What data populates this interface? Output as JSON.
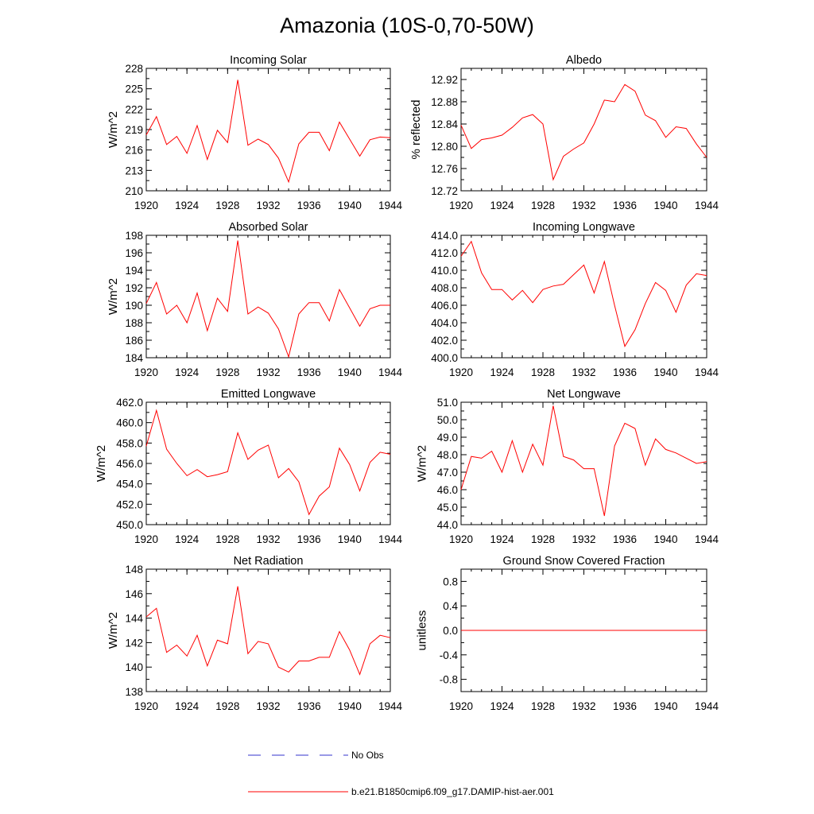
{
  "title": "Amazonia (10S-0,70-50W)",
  "colors": {
    "model": "#ff0000",
    "obs": "#3333cc"
  },
  "legend": {
    "obs_label": "No Obs",
    "model_label": "b.e21.B1850cmip6.f09_g17.DAMIP-hist-aer.001"
  },
  "chart_data": [
    {
      "type": "line",
      "title": "Incoming Solar",
      "ylabel": "W/m^2",
      "ylabel_side": "left",
      "xlim": [
        1920,
        1944
      ],
      "ylim": [
        210,
        228
      ],
      "xticks": [
        "1920",
        "1924",
        "1928",
        "1932",
        "1936",
        "1940",
        "1944"
      ],
      "yticks": [
        "210",
        "213",
        "216",
        "219",
        "222",
        "225",
        "228"
      ],
      "x": [
        1920,
        1921,
        1922,
        1923,
        1924,
        1925,
        1926,
        1927,
        1928,
        1929,
        1930,
        1931,
        1932,
        1933,
        1934,
        1935,
        1936,
        1937,
        1938,
        1939,
        1940,
        1941,
        1942,
        1943,
        1944
      ],
      "series": [
        {
          "values": [
            218.2,
            220.9,
            216.8,
            218.0,
            215.5,
            219.6,
            214.6,
            218.9,
            217.1,
            226.3,
            216.7,
            217.6,
            216.8,
            214.8,
            211.3,
            216.9,
            218.6,
            218.6,
            215.9,
            220.1,
            217.6,
            215.1,
            217.5,
            217.9,
            217.8
          ]
        }
      ]
    },
    {
      "type": "line",
      "title": "Albedo",
      "ylabel": "% reflected",
      "ylabel_side": "left",
      "xlim": [
        1920,
        1944
      ],
      "ylim": [
        12.72,
        12.94
      ],
      "xticks": [
        "1920",
        "1924",
        "1928",
        "1932",
        "1936",
        "1940",
        "1944"
      ],
      "yticks": [
        "12.72",
        "12.76",
        "12.80",
        "12.84",
        "12.88",
        "12.92"
      ],
      "x": [
        1920,
        1921,
        1922,
        1923,
        1924,
        1925,
        1926,
        1927,
        1928,
        1929,
        1930,
        1931,
        1932,
        1933,
        1934,
        1935,
        1936,
        1937,
        1938,
        1939,
        1940,
        1941,
        1942,
        1943,
        1944
      ],
      "series": [
        {
          "values": [
            12.838,
            12.796,
            12.812,
            12.815,
            12.82,
            12.834,
            12.851,
            12.857,
            12.84,
            12.74,
            12.782,
            12.795,
            12.806,
            12.84,
            12.883,
            12.88,
            12.911,
            12.899,
            12.856,
            12.846,
            12.816,
            12.835,
            12.832,
            12.804,
            12.78
          ]
        }
      ]
    },
    {
      "type": "line",
      "title": "Absorbed Solar",
      "ylabel": "W/m^2",
      "ylabel_side": "left",
      "xlim": [
        1920,
        1944
      ],
      "ylim": [
        184,
        198
      ],
      "xticks": [
        "1920",
        "1924",
        "1928",
        "1932",
        "1936",
        "1940",
        "1944"
      ],
      "yticks": [
        "184",
        "186",
        "188",
        "190",
        "192",
        "194",
        "196",
        "198"
      ],
      "x": [
        1920,
        1921,
        1922,
        1923,
        1924,
        1925,
        1926,
        1927,
        1928,
        1929,
        1930,
        1931,
        1932,
        1933,
        1934,
        1935,
        1936,
        1937,
        1938,
        1939,
        1940,
        1941,
        1942,
        1943,
        1944
      ],
      "series": [
        {
          "values": [
            190.2,
            192.6,
            189.0,
            190.0,
            188.0,
            191.4,
            187.1,
            190.8,
            189.3,
            197.4,
            189.0,
            189.8,
            189.1,
            187.3,
            184.1,
            189.0,
            190.3,
            190.3,
            188.2,
            191.8,
            189.7,
            187.6,
            189.6,
            190.0,
            190.0
          ]
        }
      ]
    },
    {
      "type": "line",
      "title": "Incoming Longwave",
      "ylabel": "",
      "ylabel_side": "left",
      "xlim": [
        1920,
        1944
      ],
      "ylim": [
        400,
        414
      ],
      "xticks": [
        "1920",
        "1924",
        "1928",
        "1932",
        "1936",
        "1940",
        "1944"
      ],
      "yticks": [
        "400.0",
        "402.0",
        "404.0",
        "406.0",
        "408.0",
        "410.0",
        "412.0",
        "414.0"
      ],
      "x": [
        1920,
        1921,
        1922,
        1923,
        1924,
        1925,
        1926,
        1927,
        1928,
        1929,
        1930,
        1931,
        1932,
        1933,
        1934,
        1935,
        1936,
        1937,
        1938,
        1939,
        1940,
        1941,
        1942,
        1943,
        1944
      ],
      "series": [
        {
          "values": [
            411.6,
            413.3,
            409.7,
            407.8,
            407.8,
            406.6,
            407.7,
            406.3,
            407.8,
            408.2,
            408.4,
            409.5,
            410.6,
            407.4,
            411.0,
            406.0,
            401.3,
            403.2,
            406.2,
            408.6,
            407.7,
            405.2,
            408.3,
            409.6,
            409.4
          ]
        }
      ]
    },
    {
      "type": "line",
      "title": "Emitted Longwave",
      "ylabel": "W/m^2",
      "ylabel_side": "left",
      "xlim": [
        1920,
        1944
      ],
      "ylim": [
        450,
        462
      ],
      "xticks": [
        "1920",
        "1924",
        "1928",
        "1932",
        "1936",
        "1940",
        "1944"
      ],
      "yticks": [
        "450.0",
        "452.0",
        "454.0",
        "456.0",
        "458.0",
        "460.0",
        "462.0"
      ],
      "x": [
        1920,
        1921,
        1922,
        1923,
        1924,
        1925,
        1926,
        1927,
        1928,
        1929,
        1930,
        1931,
        1932,
        1933,
        1934,
        1935,
        1936,
        1937,
        1938,
        1939,
        1940,
        1941,
        1942,
        1943,
        1944
      ],
      "series": [
        {
          "values": [
            457.7,
            461.2,
            457.4,
            456.0,
            454.8,
            455.4,
            454.7,
            454.9,
            455.2,
            459.0,
            456.4,
            457.3,
            457.8,
            454.6,
            455.5,
            454.2,
            451.0,
            452.8,
            453.7,
            457.5,
            455.9,
            453.3,
            456.1,
            457.1,
            456.9
          ]
        }
      ]
    },
    {
      "type": "line",
      "title": "Net Longwave",
      "ylabel": "W/m^2",
      "ylabel_side": "left",
      "xlim": [
        1920,
        1944
      ],
      "ylim": [
        44,
        51
      ],
      "xticks": [
        "1920",
        "1924",
        "1928",
        "1932",
        "1936",
        "1940",
        "1944"
      ],
      "yticks": [
        "44.0",
        "45.0",
        "46.0",
        "47.0",
        "48.0",
        "49.0",
        "50.0",
        "51.0"
      ],
      "x": [
        1920,
        1921,
        1922,
        1923,
        1924,
        1925,
        1926,
        1927,
        1928,
        1929,
        1930,
        1931,
        1932,
        1933,
        1934,
        1935,
        1936,
        1937,
        1938,
        1939,
        1940,
        1941,
        1942,
        1943,
        1944
      ],
      "series": [
        {
          "values": [
            46.0,
            47.9,
            47.8,
            48.2,
            47.0,
            48.8,
            47.0,
            48.6,
            47.4,
            50.8,
            47.9,
            47.7,
            47.2,
            47.2,
            44.5,
            48.5,
            49.8,
            49.5,
            47.4,
            48.9,
            48.3,
            48.1,
            47.8,
            47.5,
            47.6
          ]
        }
      ]
    },
    {
      "type": "line",
      "title": "Net Radiation",
      "ylabel": "W/m^2",
      "ylabel_side": "left",
      "xlim": [
        1920,
        1944
      ],
      "ylim": [
        138,
        148
      ],
      "xticks": [
        "1920",
        "1924",
        "1928",
        "1932",
        "1936",
        "1940",
        "1944"
      ],
      "yticks": [
        "138",
        "140",
        "142",
        "144",
        "146",
        "148"
      ],
      "x": [
        1920,
        1921,
        1922,
        1923,
        1924,
        1925,
        1926,
        1927,
        1928,
        1929,
        1930,
        1931,
        1932,
        1933,
        1934,
        1935,
        1936,
        1937,
        1938,
        1939,
        1940,
        1941,
        1942,
        1943,
        1944
      ],
      "series": [
        {
          "values": [
            144.1,
            144.8,
            141.2,
            141.8,
            140.9,
            142.6,
            140.1,
            142.2,
            141.9,
            146.6,
            141.1,
            142.1,
            141.9,
            140.0,
            139.6,
            140.5,
            140.5,
            140.8,
            140.8,
            142.9,
            141.4,
            139.4,
            141.9,
            142.6,
            142.4
          ]
        }
      ]
    },
    {
      "type": "line",
      "title": "Ground Snow Covered Fraction",
      "ylabel": "unitless",
      "ylabel_side": "left",
      "xlim": [
        1920,
        1944
      ],
      "ylim": [
        -1.0,
        1.0
      ],
      "xticks": [
        "1920",
        "1924",
        "1928",
        "1932",
        "1936",
        "1940",
        "1944"
      ],
      "yticks": [
        "-0.8",
        "-0.4",
        "0.0",
        "0.4",
        "0.8"
      ],
      "x": [
        1920,
        1921,
        1922,
        1923,
        1924,
        1925,
        1926,
        1927,
        1928,
        1929,
        1930,
        1931,
        1932,
        1933,
        1934,
        1935,
        1936,
        1937,
        1938,
        1939,
        1940,
        1941,
        1942,
        1943,
        1944
      ],
      "series": [
        {
          "values": [
            0,
            0,
            0,
            0,
            0,
            0,
            0,
            0,
            0,
            0,
            0,
            0,
            0,
            0,
            0,
            0,
            0,
            0,
            0,
            0,
            0,
            0,
            0,
            0,
            0
          ]
        }
      ]
    }
  ]
}
